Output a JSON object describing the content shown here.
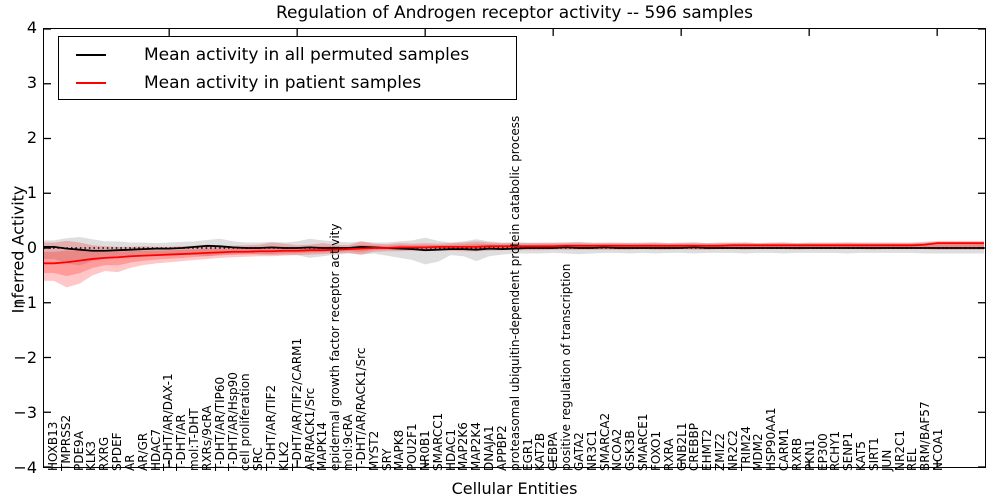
{
  "figure": {
    "title": "Regulation of Androgen receptor activity -- 596 samples",
    "ylabel": "Inferred Activity",
    "xlabel": "Cellular Entities",
    "background": "#ffffff"
  },
  "legend": {
    "items": [
      {
        "label": "Mean activity in all permuted samples",
        "color": "#000000"
      },
      {
        "label": "Mean activity in patient samples",
        "color": "#ff0000"
      }
    ]
  },
  "y_axis": {
    "tick_labels": [
      "4",
      "3",
      "2",
      "1",
      "0",
      "−1",
      "−2",
      "−3",
      "−4"
    ],
    "tick_values": [
      4,
      3,
      2,
      1,
      0,
      -1,
      -2,
      -3,
      -4
    ]
  },
  "chart_data": {
    "type": "line",
    "title": "Regulation of Androgen receptor activity -- 596 samples",
    "xlabel": "Cellular Entities",
    "ylabel": "Inferred Activity",
    "ylim": [
      -4,
      4
    ],
    "grid": false,
    "zero_reference_line": {
      "style": "dotted",
      "color": "#000000",
      "y": 0
    },
    "legend_position": "upper left",
    "x_tick_positions": [
      10,
      20,
      30,
      40,
      50,
      60,
      70
    ],
    "categories": [
      "HOXB13",
      "TMPRSS2",
      "PDE9A",
      "KLK3",
      "RXRG",
      "SPDEF",
      "AR",
      "AR/GR",
      "HDAC7",
      "T-DHT/AR/DAX-1",
      "T-DHT/AR",
      "mol:T-DHT",
      "RXRs/9cRA",
      "T-DHT/AR/TIP60",
      "T-DHT/AR/Hsp90",
      "cell proliferation",
      "SRC",
      "T-DHT/AR/TIF2",
      "KLK2",
      "T-DHT/AR/TIF2/CARM1",
      "AR/RACK1/Src",
      "MAPK14",
      "epidermal growth factor receptor activity",
      "mol:9cRA",
      "T-DHT/AR/RACK1/Src",
      "MYST2",
      "SRY",
      "MAPK8",
      "POU2F1",
      "NR0B1",
      "SMARCC1",
      "HDAC1",
      "MAP2K6",
      "MAP2K4",
      "DNAJA1",
      "APPBP2",
      "proteasomal ubiquitin-dependent protein catabolic process",
      "EGR1",
      "KAT2B",
      "CEBPA",
      "positive regulation of transcription",
      "GATA2",
      "NR3C1",
      "SMARCA2",
      "NCOA2",
      "GSK3B",
      "SMARCE1",
      "FOXO1",
      "RXRA",
      "GNB2L1",
      "CREBBP",
      "EHMT2",
      "ZMIZ2",
      "NR2C2",
      "TRIM24",
      "MDM2",
      "HSP90AA1",
      "CARM1",
      "RXRB",
      "PKN1",
      "EP300",
      "RCHY1",
      "SENP1",
      "KAT5",
      "SIRT1",
      "JUN",
      "NR2C1",
      "REL",
      "BRM/BAF57",
      "NCOA1"
    ],
    "series": [
      {
        "name": "Mean activity in all permuted samples",
        "color": "#000000",
        "band_color": "rgba(0,0,0,0.13)",
        "values": [
          0.02,
          -0.01,
          -0.03,
          -0.05,
          -0.05,
          -0.04,
          -0.03,
          -0.02,
          -0.01,
          -0.01,
          0.0,
          0.02,
          0.04,
          0.03,
          0.01,
          0.0,
          0.0,
          0.01,
          0.0,
          0.0,
          0.01,
          0.0,
          0.0,
          0.0,
          0.02,
          0.01,
          0.0,
          -0.01,
          -0.02,
          -0.04,
          -0.03,
          -0.02,
          -0.02,
          -0.03,
          -0.01,
          -0.02,
          -0.01,
          0.0,
          0.0,
          0.0,
          0.01,
          0.0,
          0.0,
          0.01,
          0.0,
          0.0,
          0.0,
          0.0,
          0.0,
          0.0,
          0.01,
          0.0,
          0.0,
          0.0,
          0.0,
          0.0,
          0.0,
          0.0,
          0.0,
          0.0,
          0.0,
          0.0,
          0.0,
          0.0,
          0.0,
          0.0,
          0.0,
          0.0,
          0.0,
          0.0
        ],
        "band_top": [
          0.14,
          0.18,
          0.2,
          0.16,
          0.12,
          0.12,
          0.1,
          0.1,
          0.09,
          0.1,
          0.11,
          0.12,
          0.15,
          0.17,
          0.12,
          0.1,
          0.1,
          0.11,
          0.1,
          0.12,
          0.17,
          0.14,
          0.12,
          0.1,
          0.12,
          0.1,
          0.1,
          0.12,
          0.14,
          0.19,
          0.13,
          0.1,
          0.12,
          0.16,
          0.12,
          0.1,
          0.1,
          0.1,
          0.09,
          0.09,
          0.1,
          0.11,
          0.1,
          0.09,
          0.09,
          0.1,
          0.09,
          0.1,
          0.09,
          0.09,
          0.1,
          0.09,
          0.09,
          0.09,
          0.1,
          0.09,
          0.09,
          0.1,
          0.09,
          0.09,
          0.09,
          0.09,
          0.1,
          0.09,
          0.09,
          0.09,
          0.09,
          0.09,
          0.1,
          0.1
        ],
        "band_bottom": [
          -0.2,
          -0.28,
          -0.32,
          -0.24,
          -0.18,
          -0.16,
          -0.14,
          -0.12,
          -0.12,
          -0.11,
          -0.12,
          -0.13,
          -0.15,
          -0.12,
          -0.11,
          -0.1,
          -0.12,
          -0.13,
          -0.12,
          -0.13,
          -0.18,
          -0.15,
          -0.12,
          -0.1,
          -0.12,
          -0.1,
          -0.14,
          -0.18,
          -0.22,
          -0.3,
          -0.25,
          -0.13,
          -0.15,
          -0.24,
          -0.15,
          -0.12,
          -0.1,
          -0.1,
          -0.1,
          -0.09,
          -0.1,
          -0.11,
          -0.1,
          -0.09,
          -0.09,
          -0.1,
          -0.09,
          -0.1,
          -0.09,
          -0.09,
          -0.1,
          -0.09,
          -0.09,
          -0.09,
          -0.1,
          -0.09,
          -0.09,
          -0.1,
          -0.09,
          -0.09,
          -0.09,
          -0.09,
          -0.1,
          -0.09,
          -0.09,
          -0.09,
          -0.09,
          -0.09,
          -0.1,
          -0.1
        ]
      },
      {
        "name": "Mean activity in patient samples",
        "color": "#ff0000",
        "band_color": "rgba(255,0,0,0.22)",
        "values": [
          -0.28,
          -0.26,
          -0.23,
          -0.2,
          -0.18,
          -0.17,
          -0.15,
          -0.14,
          -0.13,
          -0.12,
          -0.11,
          -0.1,
          -0.09,
          -0.08,
          -0.07,
          -0.07,
          -0.06,
          -0.06,
          -0.05,
          -0.05,
          -0.04,
          -0.04,
          -0.03,
          -0.02,
          -0.01,
          0.0,
          0.0,
          0.01,
          0.01,
          0.01,
          0.02,
          0.02,
          0.02,
          0.02,
          0.03,
          0.03,
          0.03,
          0.03,
          0.03,
          0.03,
          0.04,
          0.04,
          0.04,
          0.04,
          0.04,
          0.04,
          0.04,
          0.04,
          0.04,
          0.04,
          0.04,
          0.04,
          0.04,
          0.05,
          0.05,
          0.05,
          0.05,
          0.05,
          0.05,
          0.05,
          0.05,
          0.05,
          0.05,
          0.05,
          0.05,
          0.05,
          0.05,
          0.05,
          0.06,
          0.09
        ],
        "band_top": [
          0.1,
          0.13,
          0.1,
          0.05,
          0.03,
          0.02,
          0.02,
          0.03,
          0.02,
          0.02,
          0.03,
          0.04,
          0.05,
          0.04,
          0.04,
          0.05,
          0.06,
          0.1,
          0.08,
          0.05,
          0.06,
          0.09,
          0.06,
          0.05,
          0.12,
          0.08,
          0.07,
          0.09,
          0.08,
          0.09,
          0.08,
          0.09,
          0.1,
          0.12,
          0.1,
          0.09,
          0.1,
          0.09,
          0.1,
          0.1,
          0.1,
          0.1,
          0.09,
          0.1,
          0.1,
          0.09,
          0.1,
          0.1,
          0.09,
          0.1,
          0.1,
          0.09,
          0.1,
          0.1,
          0.1,
          0.09,
          0.1,
          0.1,
          0.09,
          0.1,
          0.1,
          0.1,
          0.1,
          0.1,
          0.1,
          0.1,
          0.1,
          0.1,
          0.11,
          0.13
        ],
        "band_bottom": [
          -0.6,
          -0.72,
          -0.65,
          -0.5,
          -0.42,
          -0.44,
          -0.36,
          -0.31,
          -0.28,
          -0.26,
          -0.24,
          -0.22,
          -0.2,
          -0.18,
          -0.17,
          -0.16,
          -0.15,
          -0.15,
          -0.14,
          -0.13,
          -0.12,
          -0.11,
          -0.1,
          -0.09,
          -0.12,
          -0.07,
          -0.06,
          -0.06,
          -0.05,
          -0.05,
          -0.04,
          -0.05,
          -0.06,
          -0.06,
          -0.05,
          -0.04,
          -0.04,
          -0.04,
          -0.04,
          -0.03,
          -0.03,
          -0.03,
          -0.03,
          -0.03,
          -0.03,
          -0.03,
          -0.02,
          -0.03,
          -0.03,
          -0.02,
          -0.03,
          -0.03,
          -0.02,
          -0.02,
          -0.03,
          -0.02,
          -0.02,
          -0.02,
          -0.03,
          -0.02,
          -0.02,
          -0.02,
          -0.02,
          -0.02,
          -0.03,
          -0.02,
          -0.02,
          -0.02,
          -0.02,
          -0.03
        ]
      }
    ]
  }
}
